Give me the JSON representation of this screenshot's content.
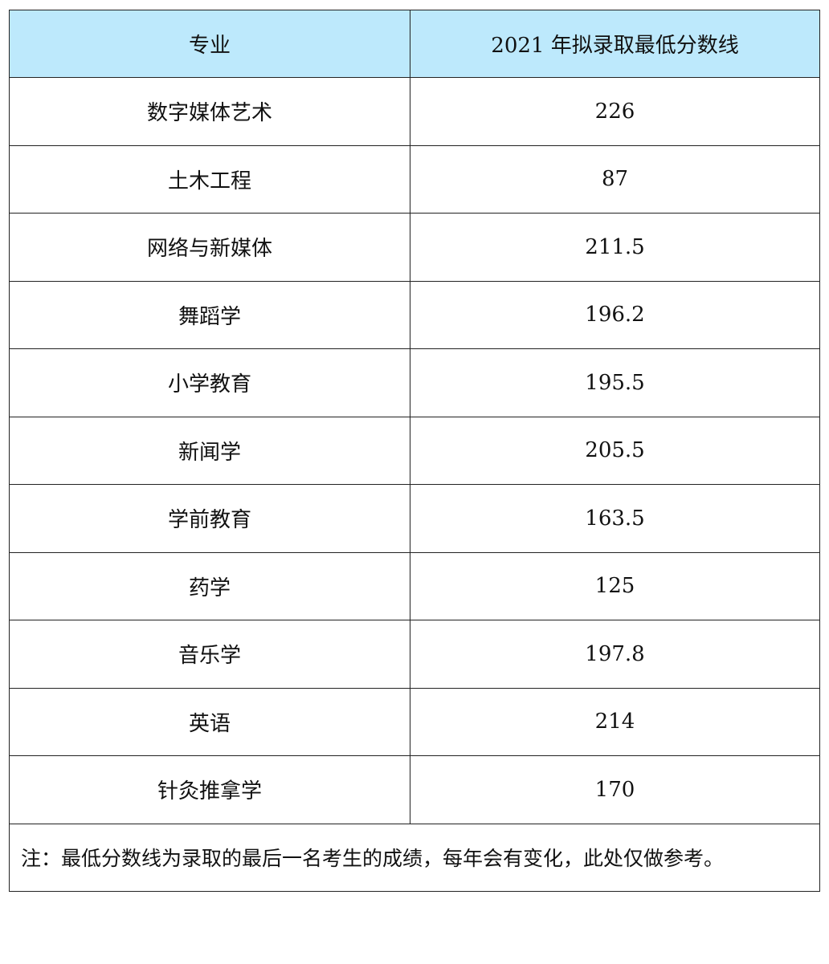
{
  "table": {
    "headers": [
      "专业",
      "2021 年拟录取最低分数线"
    ],
    "rows": [
      [
        "数字媒体艺术",
        "226"
      ],
      [
        "土木工程",
        "87"
      ],
      [
        "网络与新媒体",
        "211.5"
      ],
      [
        "舞蹈学",
        "196.2"
      ],
      [
        "小学教育",
        "195.5"
      ],
      [
        "新闻学",
        "205.5"
      ],
      [
        "学前教育",
        "163.5"
      ],
      [
        "药学",
        "125"
      ],
      [
        "音乐学",
        "197.8"
      ],
      [
        "英语",
        "214"
      ],
      [
        "针灸推拿学",
        "170"
      ]
    ],
    "note": "注：最低分数线为录取的最后一名考生的成绩，每年会有变化，此处仅做参考。"
  },
  "colors": {
    "header_bg": "#bde9fc"
  }
}
